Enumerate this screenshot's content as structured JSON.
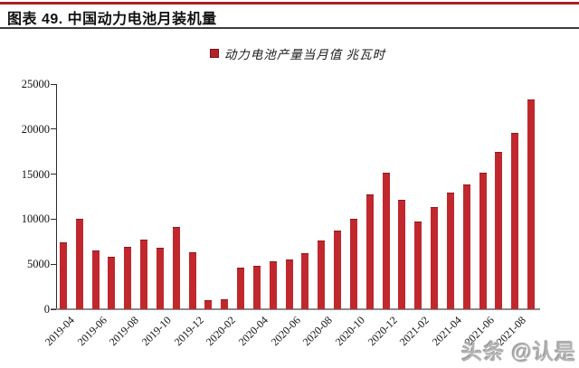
{
  "header": {
    "title": "图表 49. 中国动力电池月装机量"
  },
  "watermark": {
    "text": "头条 @认是"
  },
  "chart_data": {
    "type": "bar",
    "title": "中国动力电池月装机量",
    "legend_label": "动力电池产量当月值 兆瓦时",
    "legend_position": "top",
    "unit": "兆瓦时",
    "categories": [
      "2019-04",
      "2019-05",
      "2019-06",
      "2019-07",
      "2019-08",
      "2019-09",
      "2019-10",
      "2019-11",
      "2019-12",
      "2020-01",
      "2020-02",
      "2020-03",
      "2020-04",
      "2020-05",
      "2020-06",
      "2020-07",
      "2020-08",
      "2020-09",
      "2020-10",
      "2020-11",
      "2020-12",
      "2021-01",
      "2021-02",
      "2021-03",
      "2021-04",
      "2021-05",
      "2021-06",
      "2021-07",
      "2021-08",
      "2021-09"
    ],
    "values": [
      7300,
      9900,
      6400,
      5700,
      6800,
      7600,
      6700,
      9000,
      6200,
      900,
      1000,
      4500,
      4700,
      5200,
      5400,
      6100,
      7500,
      8600,
      9900,
      12700,
      15100,
      12000,
      9600,
      11200,
      12900,
      13800,
      15100,
      17400,
      19500,
      23200
    ],
    "ylim": [
      0,
      25000
    ],
    "yticks": [
      0,
      5000,
      10000,
      15000,
      20000,
      25000
    ],
    "xtick_labels": [
      "2019-04",
      "2019-06",
      "2019-08",
      "2019-10",
      "2019-12",
      "2020-02",
      "2020-04",
      "2020-06",
      "2020-08",
      "2020-10",
      "2020-12",
      "2021-02",
      "2021-04",
      "2021-06",
      "2021-08"
    ],
    "xtick_every": 2,
    "grid": false,
    "bar_color": "#c0282e",
    "bar_border_color": "#8f191d",
    "accent_color": "#a42226",
    "axis_color": "#2b2b2b",
    "baseline_color": "#8c8c8c"
  }
}
